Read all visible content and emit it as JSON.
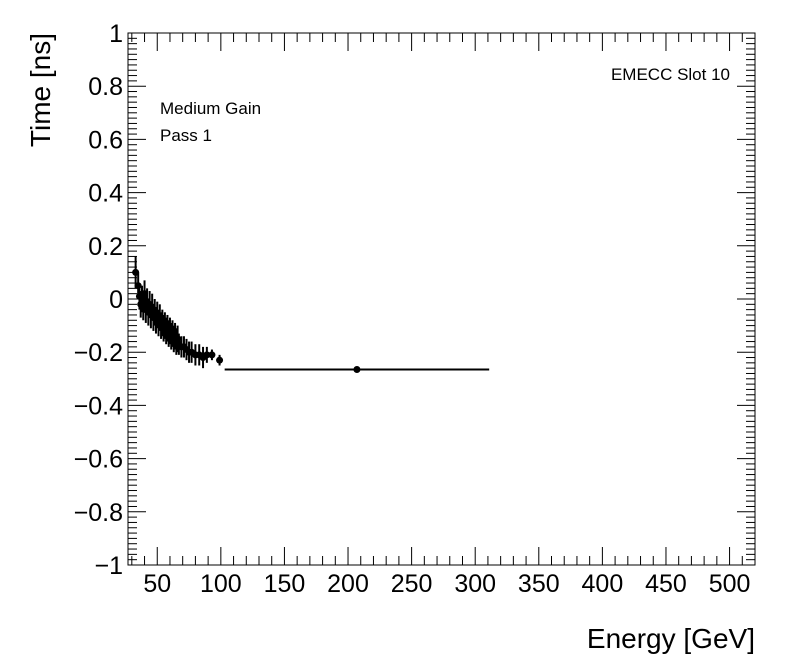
{
  "chart_data": {
    "type": "scatter",
    "title": "",
    "xlabel": "Energy [GeV]",
    "ylabel": "Time [ns]",
    "xlim": [
      27,
      520
    ],
    "ylim": [
      -1,
      1
    ],
    "x_ticks": [
      50,
      100,
      150,
      200,
      250,
      300,
      350,
      400,
      450,
      500
    ],
    "y_ticks": [
      -1,
      -0.8,
      -0.6,
      -0.4,
      -0.2,
      0,
      0.2,
      0.4,
      0.6,
      0.8,
      1
    ],
    "y_tick_labels": [
      "−1",
      "−0.8",
      "−0.6",
      "−0.4",
      "−0.2",
      "0",
      "0.2",
      "0.4",
      "0.6",
      "0.8",
      "1"
    ],
    "annotations": {
      "gain": "Medium Gain",
      "pass": "Pass 1",
      "slot": "EMECC Slot 10"
    },
    "series": [
      {
        "name": "EMECC Slot 10",
        "marker": "circle",
        "points": [
          {
            "x": 33,
            "y": 0.1,
            "xerr": 1,
            "yerr": 0.06
          },
          {
            "x": 35,
            "y": 0.05,
            "xerr": 0.5,
            "yerr": 0.05
          },
          {
            "x": 36,
            "y": 0.01,
            "xerr": 0.5,
            "yerr": 0.05
          },
          {
            "x": 37,
            "y": -0.02,
            "xerr": 0.5,
            "yerr": 0.05
          },
          {
            "x": 38,
            "y": 0.0,
            "xerr": 0.5,
            "yerr": 0.05
          },
          {
            "x": 39,
            "y": -0.03,
            "xerr": 0.5,
            "yerr": 0.05
          },
          {
            "x": 40,
            "y": 0.02,
            "xerr": 0.5,
            "yerr": 0.05
          },
          {
            "x": 41,
            "y": -0.04,
            "xerr": 0.5,
            "yerr": 0.05
          },
          {
            "x": 42,
            "y": -0.01,
            "xerr": 0.5,
            "yerr": 0.05
          },
          {
            "x": 43,
            "y": -0.05,
            "xerr": 0.5,
            "yerr": 0.05
          },
          {
            "x": 44,
            "y": -0.02,
            "xerr": 0.5,
            "yerr": 0.05
          },
          {
            "x": 45,
            "y": -0.06,
            "xerr": 0.5,
            "yerr": 0.05
          },
          {
            "x": 46,
            "y": -0.03,
            "xerr": 0.5,
            "yerr": 0.05
          },
          {
            "x": 47,
            "y": -0.07,
            "xerr": 0.5,
            "yerr": 0.05
          },
          {
            "x": 48,
            "y": -0.05,
            "xerr": 0.5,
            "yerr": 0.05
          },
          {
            "x": 49,
            "y": -0.08,
            "xerr": 0.5,
            "yerr": 0.05
          },
          {
            "x": 50,
            "y": -0.06,
            "xerr": 0.5,
            "yerr": 0.05
          },
          {
            "x": 51,
            "y": -0.09,
            "xerr": 0.5,
            "yerr": 0.05
          },
          {
            "x": 52,
            "y": -0.07,
            "xerr": 0.5,
            "yerr": 0.05
          },
          {
            "x": 53,
            "y": -0.1,
            "xerr": 0.5,
            "yerr": 0.05
          },
          {
            "x": 54,
            "y": -0.09,
            "xerr": 0.5,
            "yerr": 0.05
          },
          {
            "x": 55,
            "y": -0.11,
            "xerr": 0.5,
            "yerr": 0.05
          },
          {
            "x": 56,
            "y": -0.1,
            "xerr": 0.5,
            "yerr": 0.05
          },
          {
            "x": 57,
            "y": -0.12,
            "xerr": 0.5,
            "yerr": 0.05
          },
          {
            "x": 58,
            "y": -0.11,
            "xerr": 0.5,
            "yerr": 0.05
          },
          {
            "x": 59,
            "y": -0.13,
            "xerr": 0.5,
            "yerr": 0.05
          },
          {
            "x": 60,
            "y": -0.12,
            "xerr": 0.5,
            "yerr": 0.05
          },
          {
            "x": 61,
            "y": -0.14,
            "xerr": 0.5,
            "yerr": 0.05
          },
          {
            "x": 62,
            "y": -0.13,
            "xerr": 0.5,
            "yerr": 0.05
          },
          {
            "x": 63,
            "y": -0.15,
            "xerr": 0.5,
            "yerr": 0.05
          },
          {
            "x": 64,
            "y": -0.14,
            "xerr": 0.5,
            "yerr": 0.05
          },
          {
            "x": 65,
            "y": -0.16,
            "xerr": 0.5,
            "yerr": 0.05
          },
          {
            "x": 66,
            "y": -0.15,
            "xerr": 0.5,
            "yerr": 0.05
          },
          {
            "x": 67,
            "y": -0.17,
            "xerr": 0.5,
            "yerr": 0.04
          },
          {
            "x": 69,
            "y": -0.18,
            "xerr": 0.5,
            "yerr": 0.04
          },
          {
            "x": 71,
            "y": -0.18,
            "xerr": 0.5,
            "yerr": 0.04
          },
          {
            "x": 73,
            "y": -0.19,
            "xerr": 0.5,
            "yerr": 0.04
          },
          {
            "x": 75,
            "y": -0.2,
            "xerr": 0.5,
            "yerr": 0.04
          },
          {
            "x": 77,
            "y": -0.2,
            "xerr": 0.5,
            "yerr": 0.04
          },
          {
            "x": 80,
            "y": -0.21,
            "xerr": 1,
            "yerr": 0.04
          },
          {
            "x": 83,
            "y": -0.21,
            "xerr": 1,
            "yerr": 0.04
          },
          {
            "x": 86,
            "y": -0.22,
            "xerr": 1,
            "yerr": 0.04
          },
          {
            "x": 89,
            "y": -0.21,
            "xerr": 1,
            "yerr": 0.03
          },
          {
            "x": 93,
            "y": -0.21,
            "xerr": 1,
            "yerr": 0.02
          },
          {
            "x": 99,
            "y": -0.23,
            "xerr": 1,
            "yerr": 0.02
          },
          {
            "x": 207,
            "y": -0.265,
            "xerr": 104,
            "yerr": 0.01
          }
        ]
      }
    ]
  }
}
